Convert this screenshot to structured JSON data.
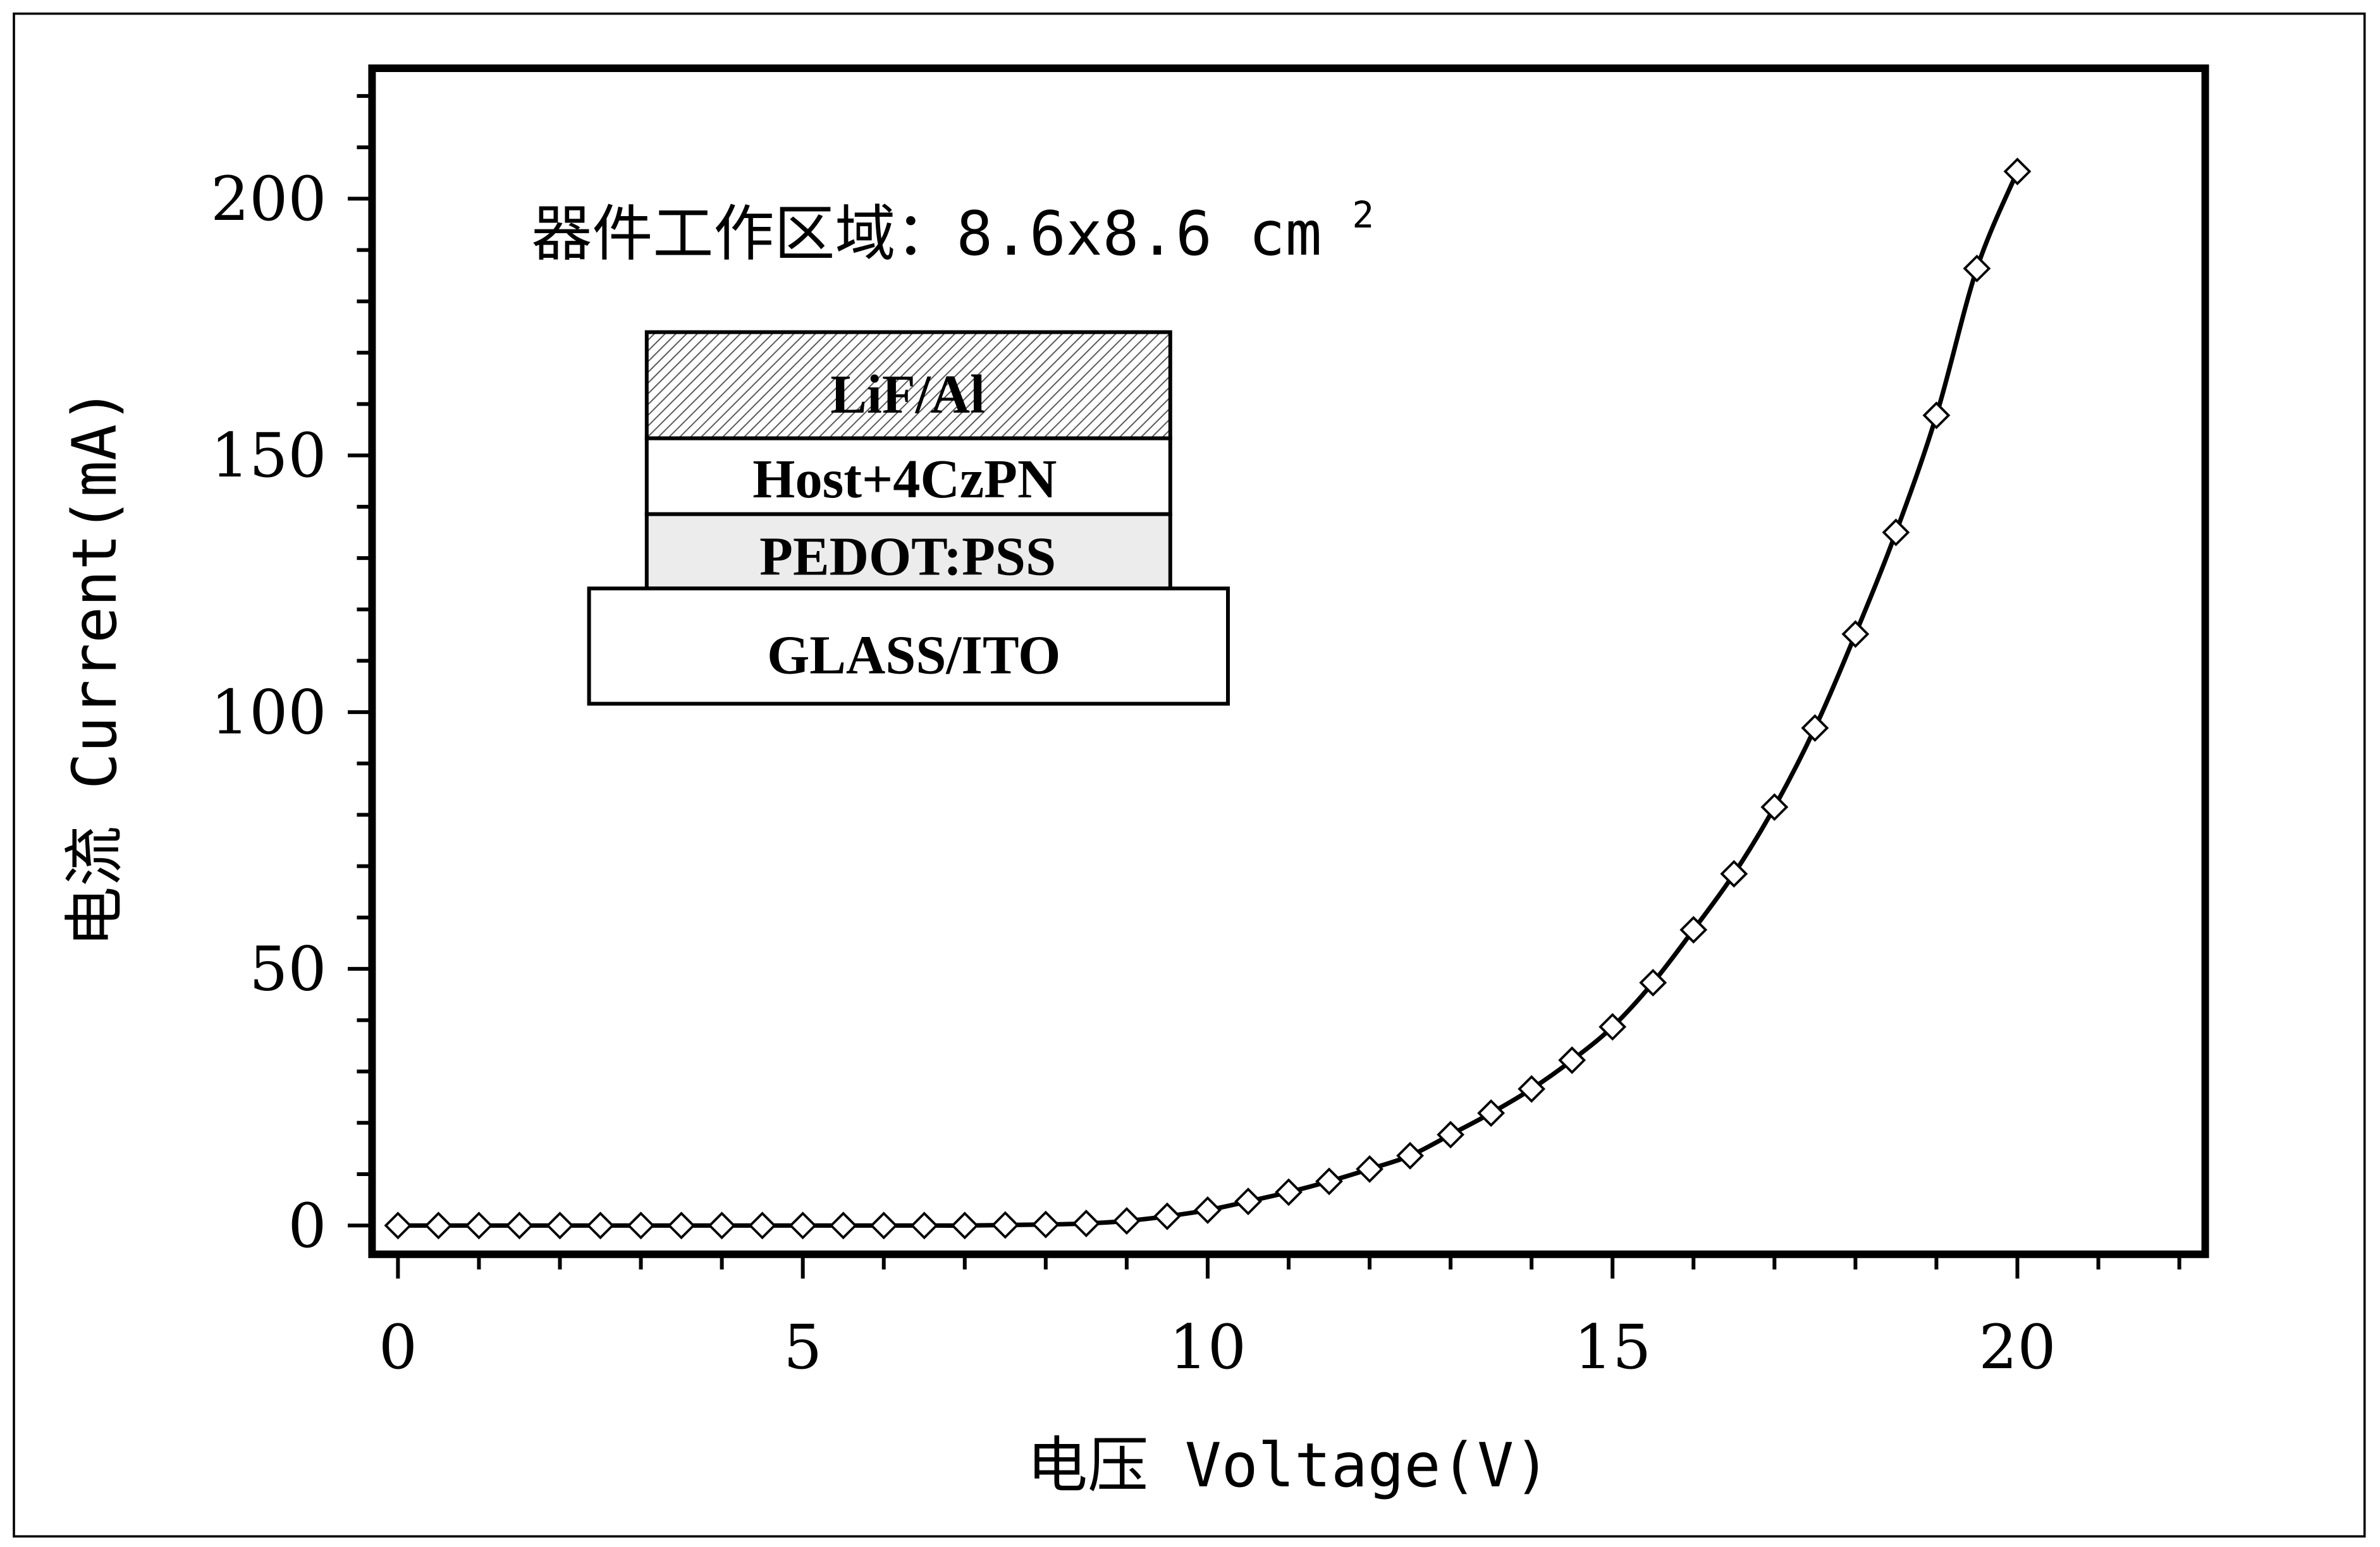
{
  "chart_data": {
    "type": "line",
    "xlabel": "电压 Voltage(V)",
    "ylabel": "电流 Current(mA)",
    "xlim": [
      -0.32,
      22.32
    ],
    "ylim": [
      -5.6,
      225.4
    ],
    "x_ticks": [
      "0",
      "5",
      "10",
      "15",
      "20"
    ],
    "y_ticks": [
      "0",
      "50",
      "100",
      "150",
      "200"
    ],
    "marker": "open-diamond",
    "line_color": "#000000",
    "grid": false,
    "annotation": {
      "text": "器件工作区域：8.6x8.6 cm",
      "superscript": "2"
    },
    "device_layers": [
      "LiF/Al",
      "Host+4CzPN",
      "PEDOT:PSS",
      "GLASS/ITO"
    ],
    "x": [
      0,
      0.5,
      1,
      1.5,
      2,
      2.5,
      3,
      3.5,
      4,
      4.5,
      5,
      5.5,
      6,
      6.5,
      7,
      7.5,
      8,
      8.5,
      9,
      9.5,
      10,
      10.5,
      11,
      11.5,
      12,
      12.5,
      13,
      13.5,
      14,
      14.5,
      15,
      15.5,
      16,
      16.5,
      17,
      17.5,
      18,
      18.5,
      19,
      19.5,
      20
    ],
    "y": [
      0,
      0,
      0,
      0,
      0,
      0,
      0,
      0,
      0,
      0,
      0,
      0,
      0,
      0,
      0,
      0.1,
      0.2,
      0.4,
      0.9,
      1.8,
      3.0,
      4.7,
      6.5,
      8.6,
      11.0,
      13.6,
      17.7,
      21.9,
      26.6,
      32.2,
      38.7,
      47.3,
      57.6,
      68.5,
      81.5,
      96.9,
      115.2,
      135.0,
      157.8,
      186.4,
      205.3
    ]
  }
}
